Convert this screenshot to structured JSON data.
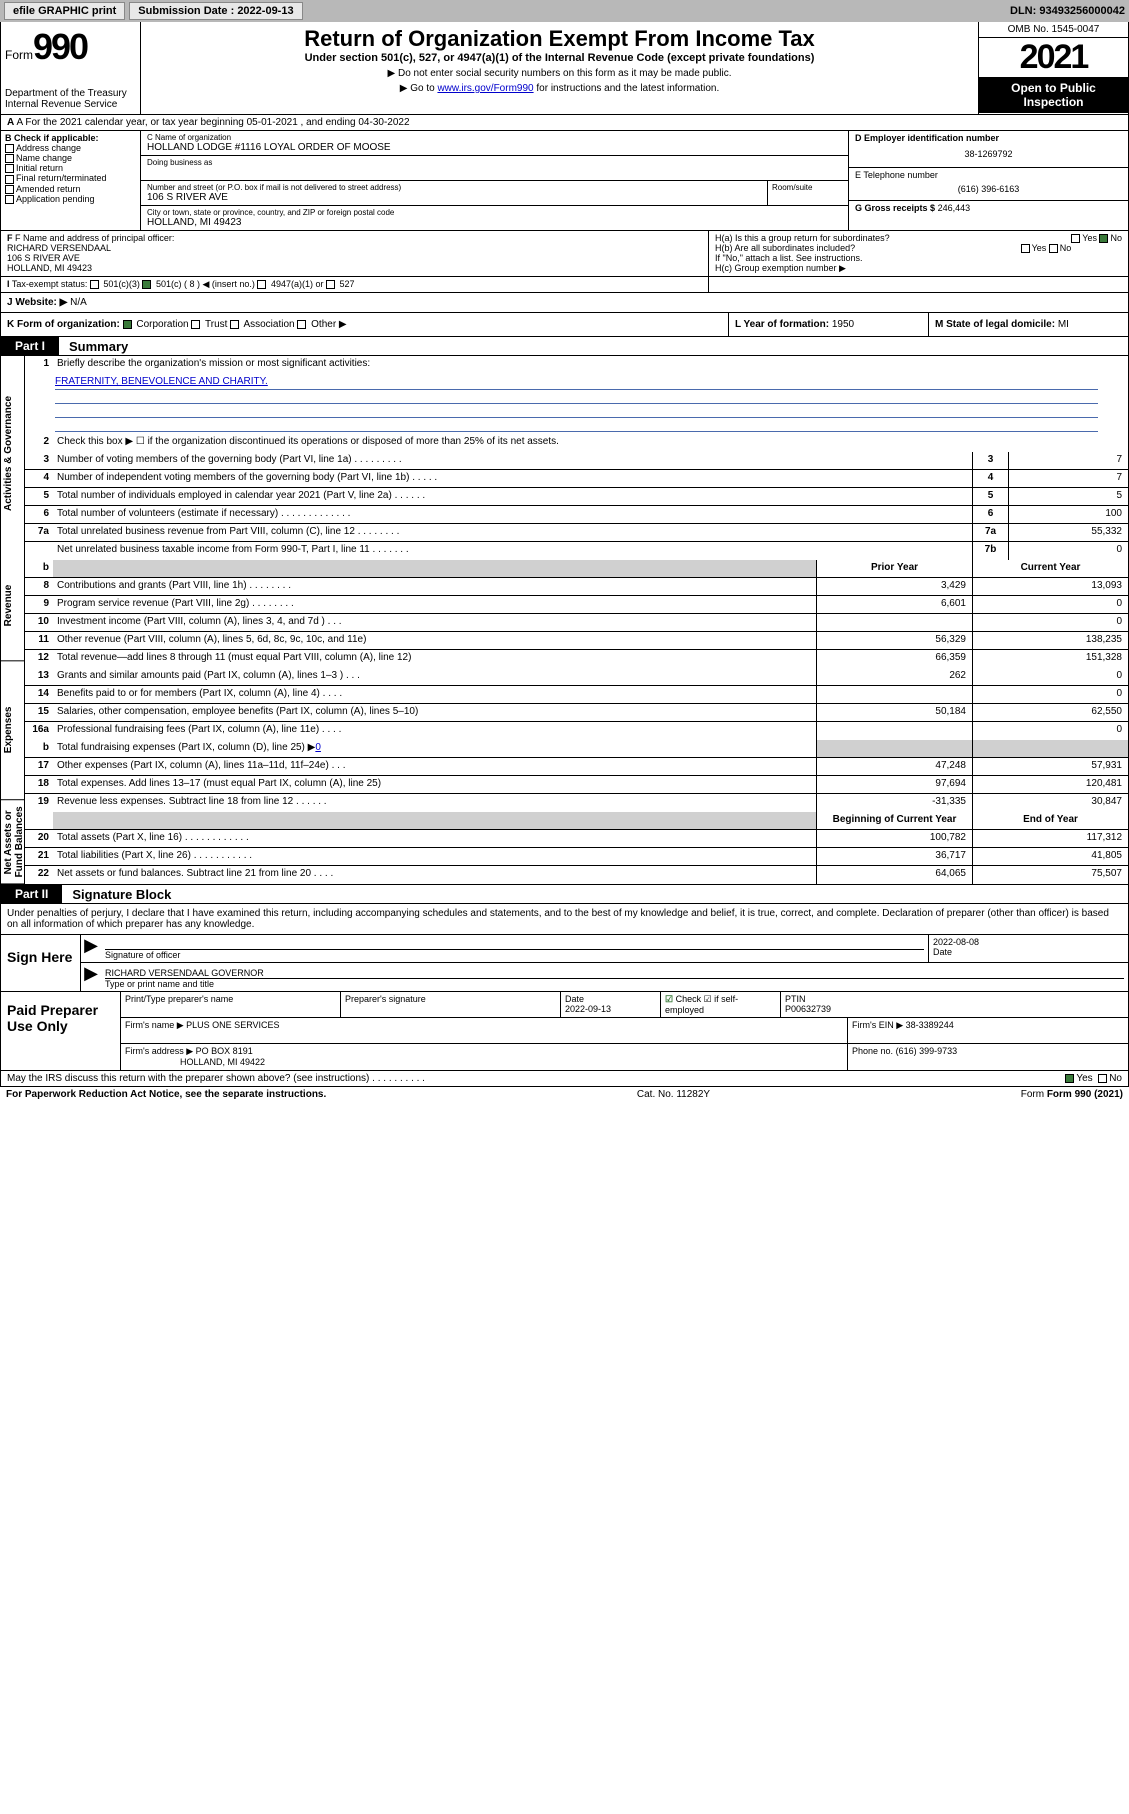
{
  "topbar": {
    "efile": "efile GRAPHIC print",
    "submission_label": "Submission Date : 2022-09-13",
    "dln": "DLN: 93493256000042"
  },
  "header": {
    "form_word": "Form",
    "form_num": "990",
    "title": "Return of Organization Exempt From Income Tax",
    "subtitle": "Under section 501(c), 527, or 4947(a)(1) of the Internal Revenue Code (except private foundations)",
    "note1": "▶ Do not enter social security numbers on this form as it may be made public.",
    "note2_pre": "▶ Go to ",
    "note2_link": "www.irs.gov/Form990",
    "note2_post": " for instructions and the latest information.",
    "dept": "Department of the Treasury\nInternal Revenue Service",
    "omb": "OMB No. 1545-0047",
    "year": "2021",
    "open": "Open to Public Inspection"
  },
  "rowA": "A For the 2021 calendar year, or tax year beginning 05-01-2021  , and ending 04-30-2022",
  "colB": {
    "head": "B Check if applicable:",
    "items": [
      "Address change",
      "Name change",
      "Initial return",
      "Final return/terminated",
      "Amended return",
      "Application pending"
    ]
  },
  "orgC": {
    "name_lab": "C Name of organization",
    "name": "HOLLAND LODGE #1116 LOYAL ORDER OF MOOSE",
    "dba_lab": "Doing business as",
    "addr_lab": "Number and street (or P.O. box if mail is not delivered to street address)",
    "room_lab": "Room/suite",
    "addr": "106 S RIVER AVE",
    "city_lab": "City or town, state or province, country, and ZIP or foreign postal code",
    "city": "HOLLAND, MI  49423"
  },
  "right": {
    "ein_lab": "D Employer identification number",
    "ein": "38-1269792",
    "tel_lab": "E Telephone number",
    "tel": "(616) 396-6163",
    "gross_lab": "G Gross receipts $",
    "gross": "246,443"
  },
  "rowF": {
    "f_lab": "F Name and address of principal officer:",
    "f_name": "RICHARD VERSENDAAL",
    "f_addr1": "106 S RIVER AVE",
    "f_addr2": "HOLLAND, MI  49423",
    "ha": "H(a)  Is this a group return for subordinates?",
    "hb": "H(b)  Are all subordinates included?",
    "hnote": "If \"No,\" attach a list. See instructions.",
    "hc": "H(c)  Group exemption number ▶",
    "yes": "Yes",
    "no": "No"
  },
  "rowI": {
    "tax_lab": "Tax-exempt status:",
    "c3": "501(c)(3)",
    "c": "501(c) ( 8 ) ◀ (insert no.)",
    "a1": "4947(a)(1) or",
    "s527": "527"
  },
  "rowJ": {
    "lab": "J Website: ▶",
    "val": "N/A"
  },
  "rowK": {
    "k": "K Form of organization:",
    "corp": "Corporation",
    "trust": "Trust",
    "assoc": "Association",
    "other": "Other ▶",
    "l_lab": "L Year of formation:",
    "l_val": "1950",
    "m_lab": "M State of legal domicile:",
    "m_val": "MI"
  },
  "part1": {
    "tab": "Part I",
    "title": "Summary",
    "side": [
      "Activities & Governance",
      "Revenue",
      "Expenses",
      "Net Assets or Fund Balances"
    ],
    "l1_lab": "Briefly describe the organization's mission or most significant activities:",
    "l1_val": "FRATERNITY, BENEVOLENCE AND CHARITY.",
    "l2": "Check this box ▶ ☐  if the organization discontinued its operations or disposed of more than 25% of its net assets.",
    "rows_top": [
      {
        "n": "3",
        "d": "Number of voting members of the governing body (Part VI, line 1a)  .   .   .   .   .   .   .   .   .",
        "box": "3",
        "v": "7"
      },
      {
        "n": "4",
        "d": "Number of independent voting members of the governing body (Part VI, line 1b)   .   .   .   .   .",
        "box": "4",
        "v": "7"
      },
      {
        "n": "5",
        "d": "Total number of individuals employed in calendar year 2021 (Part V, line 2a)   .   .   .   .   .   .",
        "box": "5",
        "v": "5"
      },
      {
        "n": "6",
        "d": "Total number of volunteers (estimate if necessary)   .   .   .   .   .   .   .   .   .   .   .   .   .",
        "box": "6",
        "v": "100"
      },
      {
        "n": "7a",
        "d": "Total unrelated business revenue from Part VIII, column (C), line 12   .   .   .   .   .   .   .   .",
        "box": "7a",
        "v": "55,332"
      },
      {
        "n": "",
        "d": "Net unrelated business taxable income from Form 990-T, Part I, line 11   .   .   .   .   .   .   .",
        "box": "7b",
        "v": "0"
      }
    ],
    "hdr_b": "b",
    "col_prior": "Prior Year",
    "col_current": "Current Year",
    "rows_rev": [
      {
        "n": "8",
        "d": "Contributions and grants (Part VIII, line 1h)   .   .   .   .   .   .   .   .",
        "p": "3,429",
        "c": "13,093"
      },
      {
        "n": "9",
        "d": "Program service revenue (Part VIII, line 2g)   .   .   .   .   .   .   .   .",
        "p": "6,601",
        "c": "0"
      },
      {
        "n": "10",
        "d": "Investment income (Part VIII, column (A), lines 3, 4, and 7d )   .   .   .",
        "p": "",
        "c": "0"
      },
      {
        "n": "11",
        "d": "Other revenue (Part VIII, column (A), lines 5, 6d, 8c, 9c, 10c, and 11e)",
        "p": "56,329",
        "c": "138,235"
      },
      {
        "n": "12",
        "d": "Total revenue—add lines 8 through 11 (must equal Part VIII, column (A), line 12)",
        "p": "66,359",
        "c": "151,328"
      }
    ],
    "rows_exp": [
      {
        "n": "13",
        "d": "Grants and similar amounts paid (Part IX, column (A), lines 1–3 )   .   .   .",
        "p": "262",
        "c": "0"
      },
      {
        "n": "14",
        "d": "Benefits paid to or for members (Part IX, column (A), line 4)   .   .   .   .",
        "p": "",
        "c": "0"
      },
      {
        "n": "15",
        "d": "Salaries, other compensation, employee benefits (Part IX, column (A), lines 5–10)",
        "p": "50,184",
        "c": "62,550"
      },
      {
        "n": "16a",
        "d": "Professional fundraising fees (Part IX, column (A), line 11e)   .   .   .   .",
        "p": "",
        "c": "0"
      }
    ],
    "row_b": {
      "n": "b",
      "d_pre": "Total fundraising expenses (Part IX, column (D), line 25) ▶",
      "d_val": "0"
    },
    "rows_exp2": [
      {
        "n": "17",
        "d": "Other expenses (Part IX, column (A), lines 11a–11d, 11f–24e)   .   .   .",
        "p": "47,248",
        "c": "57,931"
      },
      {
        "n": "18",
        "d": "Total expenses. Add lines 13–17 (must equal Part IX, column (A), line 25)",
        "p": "97,694",
        "c": "120,481"
      },
      {
        "n": "19",
        "d": "Revenue less expenses. Subtract line 18 from line 12   .   .   .   .   .   .",
        "p": "-31,335",
        "c": "30,847"
      }
    ],
    "col_begin": "Beginning of Current Year",
    "col_end": "End of Year",
    "rows_net": [
      {
        "n": "20",
        "d": "Total assets (Part X, line 16)   .   .   .   .   .   .   .   .   .   .   .   .",
        "p": "100,782",
        "c": "117,312"
      },
      {
        "n": "21",
        "d": "Total liabilities (Part X, line 26)   .   .   .   .   .   .   .   .   .   .   .",
        "p": "36,717",
        "c": "41,805"
      },
      {
        "n": "22",
        "d": "Net assets or fund balances. Subtract line 21 from line 20   .   .   .   .",
        "p": "64,065",
        "c": "75,507"
      }
    ]
  },
  "part2": {
    "tab": "Part II",
    "title": "Signature Block",
    "intro": "Under penalties of perjury, I declare that I have examined this return, including accompanying schedules and statements, and to the best of my knowledge and belief, it is true, correct, and complete. Declaration of preparer (other than officer) is based on all information of which preparer has any knowledge.",
    "sign_here": "Sign Here",
    "sig_officer": "Signature of officer",
    "sig_date": "Date",
    "sig_date_val": "2022-08-08",
    "name_title": "RICHARD VERSENDAAL GOVERNOR",
    "name_lab": "Type or print name and title",
    "paid_prep": "Paid Preparer Use Only",
    "pt_name_lab": "Print/Type preparer's name",
    "pt_sig_lab": "Preparer's signature",
    "pt_date_lab": "Date",
    "pt_date": "2022-09-13",
    "pt_check_lab": "Check ☑ if self-employed",
    "ptin_lab": "PTIN",
    "ptin": "P00632739",
    "firm_name_lab": "Firm's name    ▶",
    "firm_name": "PLUS ONE SERVICES",
    "firm_ein_lab": "Firm's EIN ▶",
    "firm_ein": "38-3389244",
    "firm_addr_lab": "Firm's address ▶",
    "firm_addr1": "PO BOX 8191",
    "firm_addr2": "HOLLAND, MI  49422",
    "phone_lab": "Phone no.",
    "phone": "(616) 399-9733",
    "may": "May the IRS discuss this return with the preparer shown above? (see instructions)   .   .   .   .   .   .   .   .   .   .",
    "may_yes": "Yes",
    "may_no": "No"
  },
  "footer": {
    "pra": "For Paperwork Reduction Act Notice, see the separate instructions.",
    "cat": "Cat. No. 11282Y",
    "form": "Form 990 (2021)"
  }
}
